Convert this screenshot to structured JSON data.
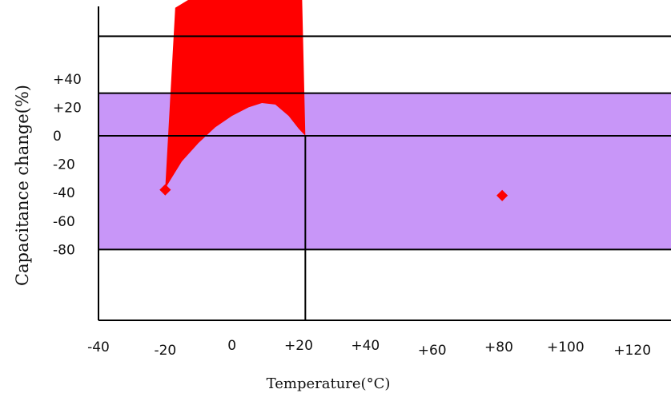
{
  "chart_data": {
    "type": "area",
    "title": "",
    "ylabel": "Capacitance change(%)",
    "xlabel": "Temperature(°C)",
    "xlim": [
      -40,
      125
    ],
    "ylim": [
      -100,
      70
    ],
    "x_ticks": [
      "-40",
      "-20",
      "0",
      "+20",
      "+40",
      "+60",
      "+80",
      "+100",
      "+120"
    ],
    "y_ticks": [
      "+40",
      "+20",
      "0",
      "-20",
      "-40",
      "-60",
      "-80"
    ],
    "grid": false,
    "tolerance_band": {
      "y_low": -80,
      "y_high": 30,
      "color": "#c896f8"
    },
    "reference_lines": {
      "y": [
        0,
        70,
        30,
        -80
      ],
      "x": [
        22
      ]
    },
    "series": [
      {
        "color": "#ff0000",
        "upper": [
          [
            -17,
            90
          ],
          [
            -10,
            100
          ],
          [
            0,
            110
          ],
          [
            10,
            115
          ],
          [
            21,
            100
          ],
          [
            22,
            0
          ]
        ],
        "lower": [
          [
            -20,
            -37
          ],
          [
            -15,
            -18
          ],
          [
            -10,
            -5
          ],
          [
            -5,
            6
          ],
          [
            0,
            14
          ],
          [
            5,
            20
          ],
          [
            9,
            23
          ],
          [
            13,
            22
          ],
          [
            17,
            14
          ],
          [
            20,
            5
          ],
          [
            22,
            0
          ]
        ]
      }
    ],
    "points": [
      {
        "x": -20,
        "y": -38,
        "color": "#ff0000"
      },
      {
        "x": 81,
        "y": -42,
        "color": "#ff0000"
      }
    ]
  }
}
